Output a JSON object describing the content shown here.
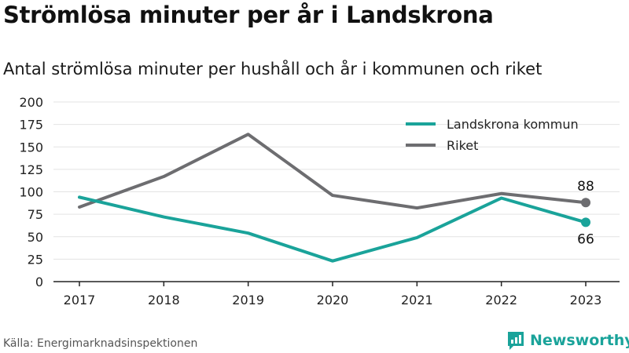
{
  "header": {
    "title": "Strömlösa minuter per år i Landskrona",
    "subtitle": "Antal strömlösa minuter per hushåll och år i kommunen och riket"
  },
  "footer": {
    "source": "Källa: Energimarknadsinspektionen",
    "brand": "Newsworthy"
  },
  "colors": {
    "landskrona": "#1aa39a",
    "riket": "#6d6d70",
    "grid": "#e3e3e3",
    "axis": "#222222",
    "brand": "#1aa39a"
  },
  "chart_data": {
    "type": "line",
    "x": [
      "2017",
      "2018",
      "2019",
      "2020",
      "2021",
      "2022",
      "2023"
    ],
    "series": [
      {
        "name": "Landskrona kommun",
        "values": [
          94,
          72,
          54,
          23,
          49,
          93,
          66
        ]
      },
      {
        "name": "Riket",
        "values": [
          83,
          117,
          164,
          96,
          82,
          98,
          88
        ]
      }
    ],
    "end_labels": [
      "66",
      "88"
    ],
    "y_ticks": [
      "0",
      "25",
      "50",
      "75",
      "100",
      "125",
      "150",
      "175",
      "200"
    ],
    "ylim": [
      0,
      200
    ],
    "grid": true,
    "legend_position": "top-right"
  }
}
